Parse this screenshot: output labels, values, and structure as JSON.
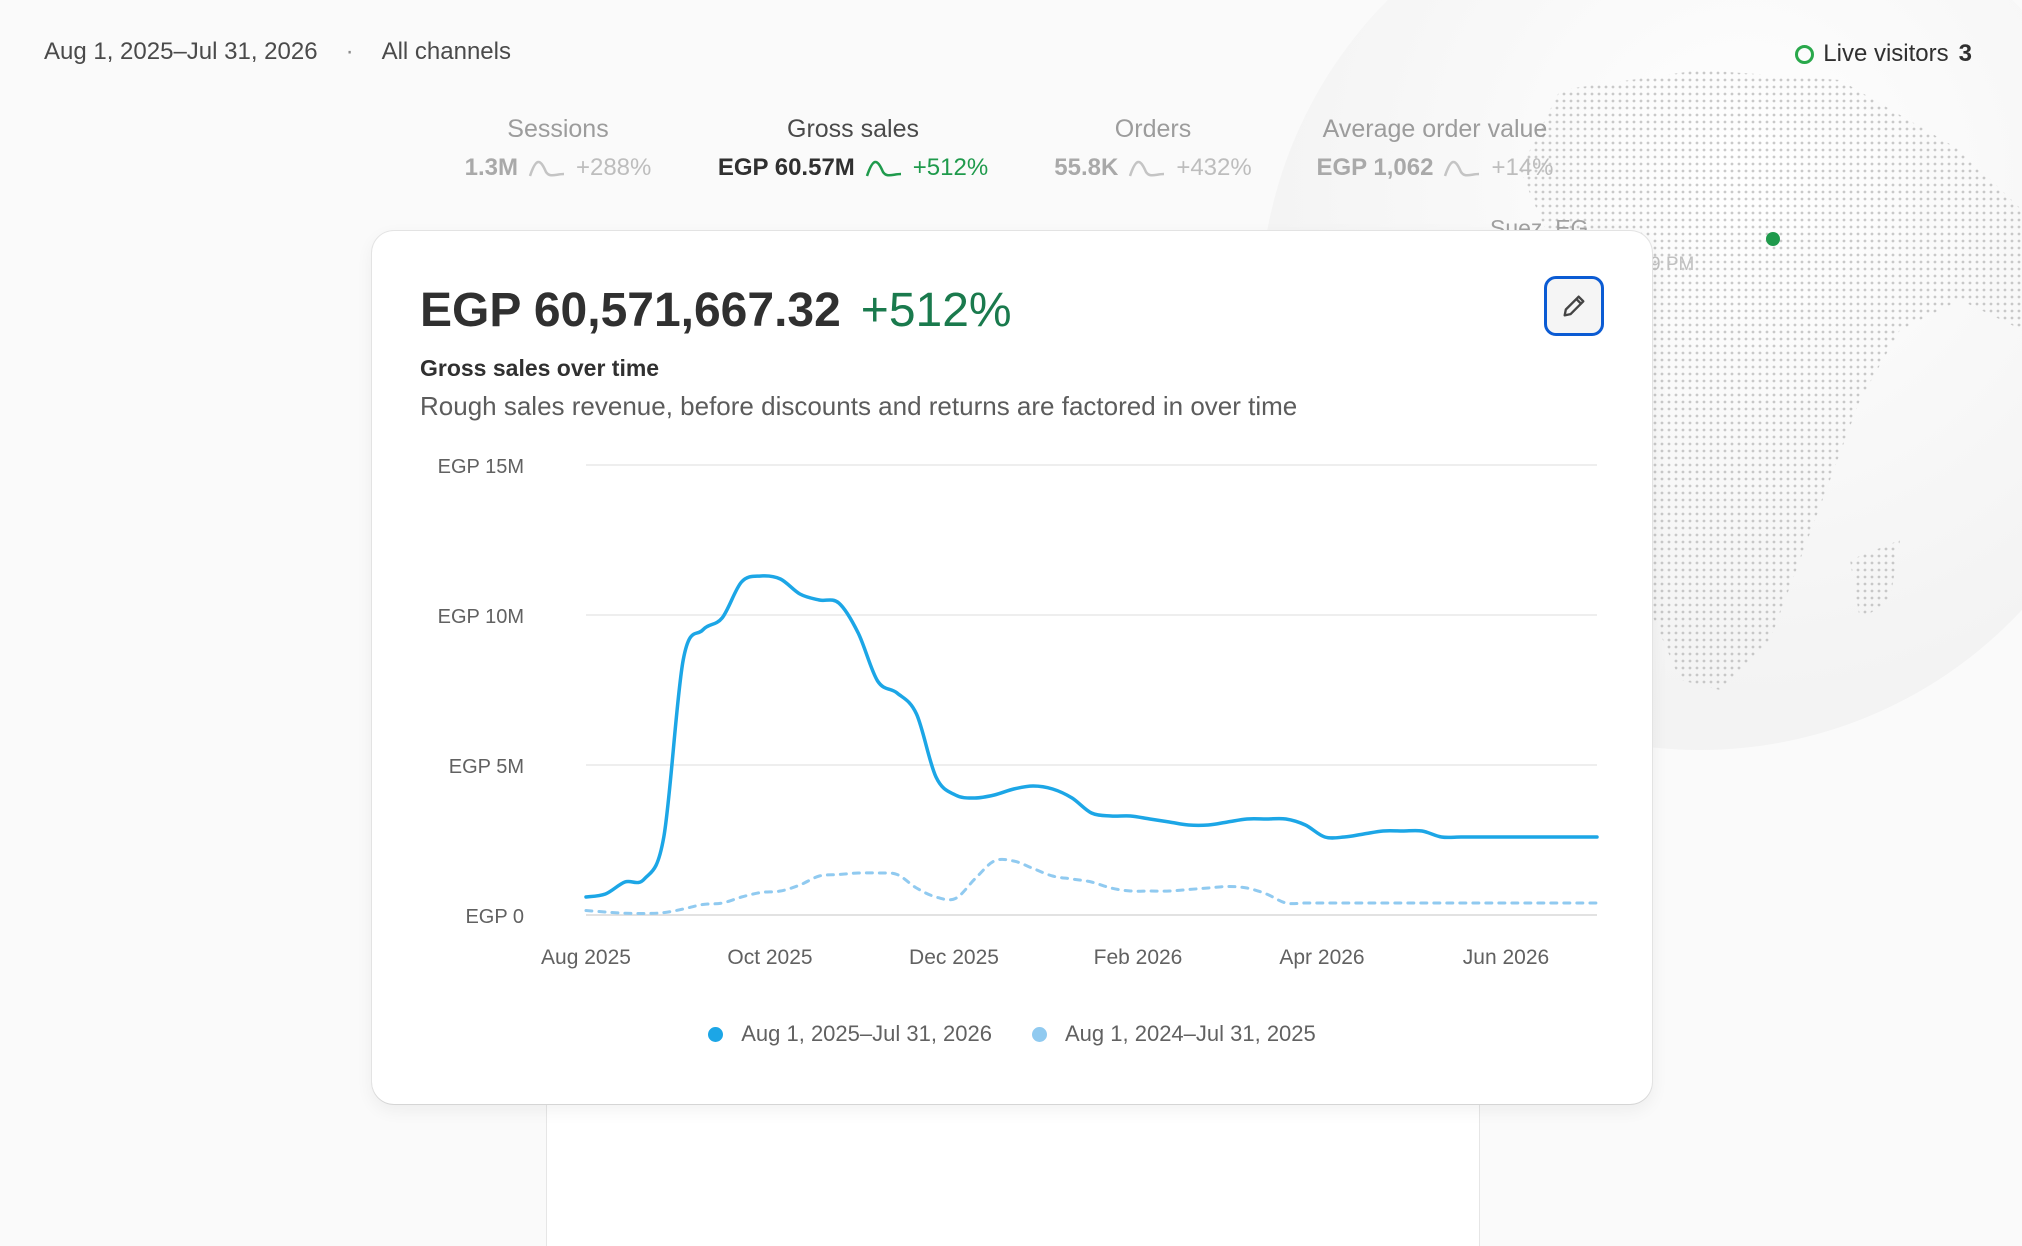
{
  "filters": {
    "date_range": "Aug 1, 2025–Jul 31, 2026",
    "separator": "·",
    "channel": "All channels"
  },
  "live_visitors": {
    "label": "Live visitors",
    "count": "3",
    "status_color": "#29a84b"
  },
  "globe": {
    "location": "Suez, EG",
    "time_partial": "9 PM"
  },
  "metrics": [
    {
      "label": "Sessions",
      "value": "1.3M",
      "change": "+288%",
      "active": false
    },
    {
      "label": "Gross sales",
      "value": "EGP 60.57M",
      "change": "+512%",
      "active": true
    },
    {
      "label": "Orders",
      "value": "55.8K",
      "change": "+432%",
      "active": false
    },
    {
      "label": "Average order value",
      "value": "EGP 1,062",
      "change": "+14%",
      "active": false
    }
  ],
  "card": {
    "total": "EGP 60,571,667.32",
    "change": "+512%",
    "title": "Gross sales over time",
    "description": "Rough sales revenue, before discounts and returns are factored in over time",
    "edit_icon": "pencil-icon"
  },
  "chart_data": {
    "type": "line",
    "y_ticks": [
      "EGP 15M",
      "EGP 10M",
      "EGP 5M",
      "EGP 0"
    ],
    "x_ticks": [
      "Aug 2025",
      "Oct 2025",
      "Dec 2025",
      "Feb 2026",
      "Apr 2026",
      "Jun 2026"
    ],
    "ylim": [
      0,
      15000000
    ],
    "grid": true,
    "legend_position": "bottom",
    "x_weeks": [
      0,
      1,
      2,
      3,
      4,
      5,
      6,
      7,
      8,
      9,
      10,
      11,
      12,
      13,
      14,
      15,
      16,
      17,
      18,
      19,
      20,
      21,
      22,
      23,
      24,
      25,
      26,
      27,
      28,
      29,
      30,
      31,
      32,
      33,
      34,
      35,
      36,
      37,
      38,
      39,
      40,
      41,
      42,
      43,
      44,
      45,
      46,
      47,
      48,
      49,
      50,
      51,
      52
    ],
    "series": [
      {
        "name": "Aug 1, 2025–Jul 31, 2026",
        "color": "#1ca6e6",
        "style": "solid",
        "values": [
          600000,
          700000,
          1100000,
          1200000,
          2600000,
          8500000,
          9500000,
          9900000,
          11100000,
          11300000,
          11200000,
          10700000,
          10500000,
          10400000,
          9400000,
          7800000,
          7400000,
          6700000,
          4600000,
          4000000,
          3900000,
          4000000,
          4200000,
          4300000,
          4200000,
          3900000,
          3400000,
          3300000,
          3300000,
          3200000,
          3100000,
          3000000,
          3000000,
          3100000,
          3200000,
          3200000,
          3200000,
          3000000,
          2600000,
          2600000,
          2700000,
          2800000,
          2800000,
          2800000,
          2600000,
          2600000,
          2600000,
          2600000,
          2600000,
          2600000,
          2600000,
          2600000,
          2600000
        ]
      },
      {
        "name": "Aug 1, 2024–Jul 31, 2025",
        "color": "#90caf0",
        "style": "dashed",
        "values": [
          150000,
          100000,
          60000,
          50000,
          80000,
          200000,
          350000,
          400000,
          600000,
          750000,
          800000,
          1000000,
          1300000,
          1350000,
          1400000,
          1400000,
          1350000,
          900000,
          600000,
          550000,
          1200000,
          1800000,
          1800000,
          1550000,
          1300000,
          1200000,
          1100000,
          900000,
          800000,
          800000,
          800000,
          850000,
          900000,
          950000,
          900000,
          700000,
          400000,
          400000,
          400000,
          400000,
          400000,
          400000,
          400000,
          400000,
          400000,
          400000,
          400000,
          400000,
          400000,
          400000,
          400000,
          400000,
          400000
        ]
      }
    ]
  }
}
